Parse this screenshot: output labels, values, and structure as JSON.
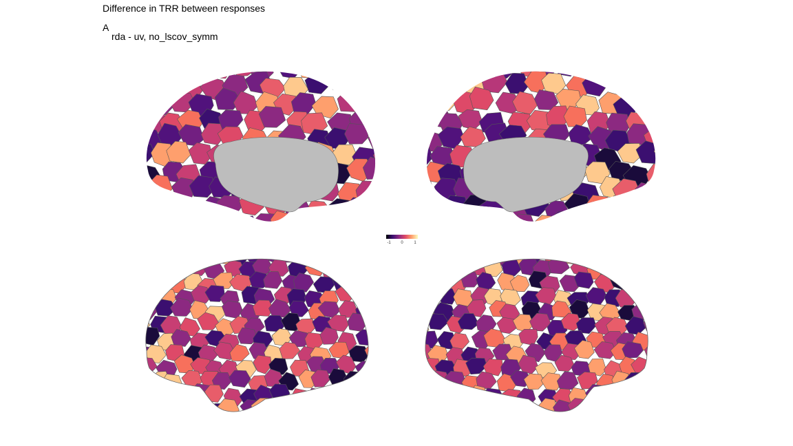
{
  "figure": {
    "title": "Difference in TRR between responses",
    "tag": "A",
    "subtitle": "rda - uv, no_lscov_symm"
  },
  "panels": [
    {
      "view": "left medial"
    },
    {
      "view": "right medial"
    },
    {
      "view": "left lateral"
    },
    {
      "view": "right lateral"
    }
  ],
  "colorbar": {
    "palette": "magma",
    "range": [
      -1,
      1
    ],
    "ticks": [
      "-1",
      "0",
      "1"
    ],
    "colors": [
      "#000004",
      "#3b0f70",
      "#8c2981",
      "#de4968",
      "#fe9f6d",
      "#fcfdbf"
    ]
  },
  "medial_wall_color": "#bdbdbd"
}
